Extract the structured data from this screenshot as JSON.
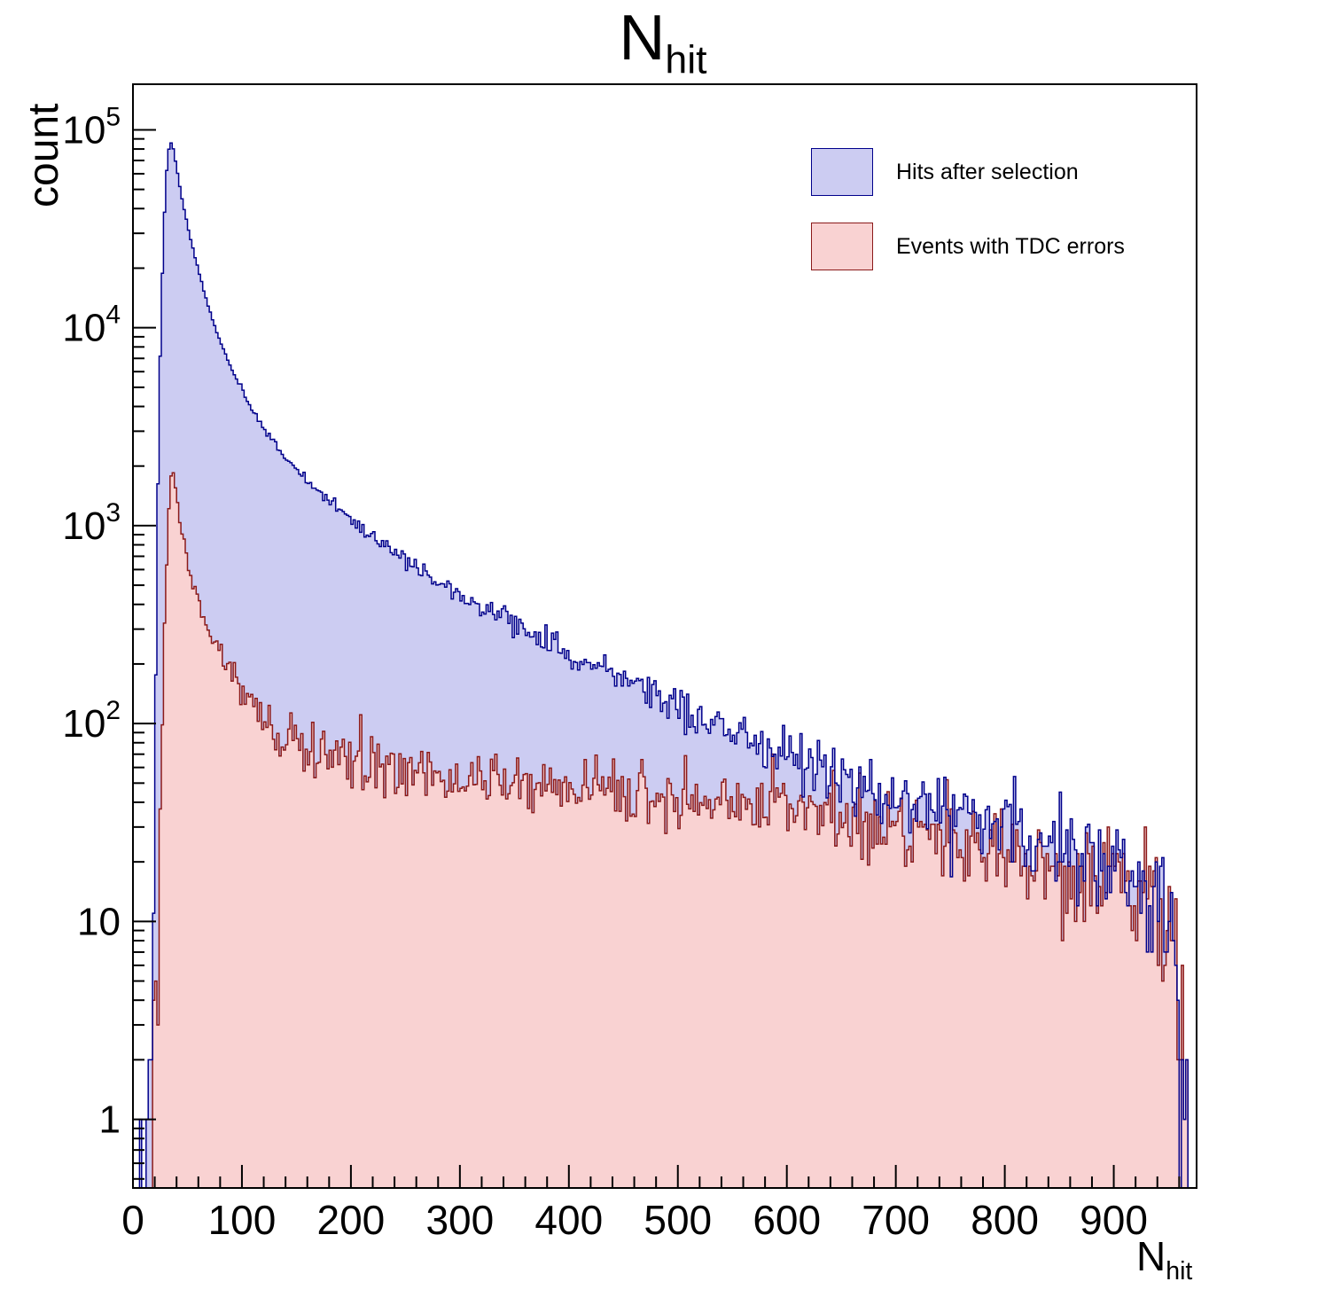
{
  "chart_data": {
    "type": "bar",
    "subtype": "overlaid-step-histograms-log-y",
    "title_main": "N",
    "title_sub": "hit",
    "ylabel": "count",
    "xlabel_main": "N",
    "xlabel_sub": "hit",
    "x_range": [
      0,
      976
    ],
    "y_range": [
      0.45,
      170000
    ],
    "y_scale": "log",
    "x_ticks": [
      0,
      100,
      200,
      300,
      400,
      500,
      600,
      700,
      800,
      900
    ],
    "x_minor_step": 20,
    "y_major_decades": [
      0,
      1,
      2,
      3,
      4,
      5
    ],
    "bin_width": 2,
    "noise_seed": 20240607,
    "noise_factor": 1.25,
    "grid": false,
    "legend_position": "top-right",
    "series": [
      {
        "name": "Hits after selection",
        "fill_color": "#ccccf2",
        "line_color": "#00008b",
        "anchors": [
          [
            6,
            0.2
          ],
          [
            10,
            0.4
          ],
          [
            14,
            0.7
          ],
          [
            16,
            1.2
          ],
          [
            18,
            4
          ],
          [
            19,
            12
          ],
          [
            20,
            55
          ],
          [
            21,
            180
          ],
          [
            22,
            600
          ],
          [
            23,
            1600
          ],
          [
            24,
            3600
          ],
          [
            25,
            7000
          ],
          [
            26,
            12000
          ],
          [
            27,
            19000
          ],
          [
            28,
            28000
          ],
          [
            29,
            38000
          ],
          [
            30,
            50000
          ],
          [
            31,
            62000
          ],
          [
            32,
            72000
          ],
          [
            33,
            80000
          ],
          [
            34,
            85000
          ],
          [
            35,
            86000
          ],
          [
            36,
            84000
          ],
          [
            37,
            80000
          ],
          [
            38,
            75000
          ],
          [
            40,
            65000
          ],
          [
            42,
            56000
          ],
          [
            44,
            48000
          ],
          [
            46,
            42000
          ],
          [
            48,
            37000
          ],
          [
            50,
            33000
          ],
          [
            54,
            26500
          ],
          [
            58,
            21500
          ],
          [
            62,
            17800
          ],
          [
            66,
            14800
          ],
          [
            70,
            12400
          ],
          [
            75,
            10200
          ],
          [
            80,
            8600
          ],
          [
            85,
            7300
          ],
          [
            90,
            6300
          ],
          [
            95,
            5500
          ],
          [
            100,
            4800
          ],
          [
            110,
            3800
          ],
          [
            120,
            3100
          ],
          [
            130,
            2600
          ],
          [
            140,
            2230
          ],
          [
            150,
            1950
          ],
          [
            160,
            1700
          ],
          [
            170,
            1500
          ],
          [
            180,
            1340
          ],
          [
            190,
            1200
          ],
          [
            200,
            1080
          ],
          [
            215,
            930
          ],
          [
            230,
            800
          ],
          [
            245,
            700
          ],
          [
            260,
            615
          ],
          [
            275,
            545
          ],
          [
            290,
            485
          ],
          [
            300,
            450
          ],
          [
            320,
            390
          ],
          [
            340,
            340
          ],
          [
            360,
            300
          ],
          [
            380,
            263
          ],
          [
            400,
            230
          ],
          [
            420,
            203
          ],
          [
            440,
            180
          ],
          [
            460,
            160
          ],
          [
            480,
            141
          ],
          [
            500,
            124
          ],
          [
            520,
            108
          ],
          [
            540,
            97
          ],
          [
            560,
            87
          ],
          [
            580,
            78
          ],
          [
            600,
            70
          ],
          [
            620,
            62
          ],
          [
            640,
            56
          ],
          [
            660,
            50
          ],
          [
            680,
            45
          ],
          [
            700,
            41
          ],
          [
            720,
            38
          ],
          [
            740,
            35
          ],
          [
            760,
            33
          ],
          [
            780,
            31
          ],
          [
            800,
            29
          ],
          [
            820,
            27
          ],
          [
            840,
            25
          ],
          [
            860,
            23
          ],
          [
            880,
            21
          ],
          [
            900,
            20
          ],
          [
            915,
            18
          ],
          [
            930,
            16
          ],
          [
            940,
            13
          ],
          [
            948,
            10
          ],
          [
            954,
            7
          ],
          [
            958,
            4
          ],
          [
            962,
            2.5
          ],
          [
            966,
            1.2
          ],
          [
            970,
            0.6
          ]
        ]
      },
      {
        "name": "Events with TDC errors",
        "fill_color": "#f9d2d2",
        "line_color": "#8b1a1a",
        "anchors": [
          [
            16,
            0.3
          ],
          [
            20,
            0.8
          ],
          [
            22,
            3
          ],
          [
            24,
            12
          ],
          [
            26,
            45
          ],
          [
            27,
            90
          ],
          [
            28,
            170
          ],
          [
            29,
            280
          ],
          [
            30,
            450
          ],
          [
            31,
            650
          ],
          [
            32,
            900
          ],
          [
            33,
            1200
          ],
          [
            34,
            1500
          ],
          [
            35,
            1750
          ],
          [
            36,
            1800
          ],
          [
            37,
            1750
          ],
          [
            38,
            1650
          ],
          [
            40,
            1400
          ],
          [
            42,
            1180
          ],
          [
            44,
            1000
          ],
          [
            46,
            870
          ],
          [
            48,
            760
          ],
          [
            50,
            670
          ],
          [
            54,
            540
          ],
          [
            58,
            450
          ],
          [
            62,
            385
          ],
          [
            66,
            335
          ],
          [
            70,
            295
          ],
          [
            75,
            255
          ],
          [
            80,
            225
          ],
          [
            85,
            200
          ],
          [
            90,
            180
          ],
          [
            95,
            163
          ],
          [
            100,
            148
          ],
          [
            110,
            125
          ],
          [
            120,
            108
          ],
          [
            130,
            96
          ],
          [
            140,
            87
          ],
          [
            150,
            80
          ],
          [
            160,
            75
          ],
          [
            170,
            71
          ],
          [
            180,
            67
          ],
          [
            200,
            62
          ],
          [
            220,
            59
          ],
          [
            240,
            57
          ],
          [
            260,
            55
          ],
          [
            280,
            54
          ],
          [
            300,
            53
          ],
          [
            330,
            51
          ],
          [
            360,
            50
          ],
          [
            400,
            48
          ],
          [
            440,
            46
          ],
          [
            480,
            44
          ],
          [
            500,
            43
          ],
          [
            540,
            41
          ],
          [
            580,
            38
          ],
          [
            600,
            36
          ],
          [
            640,
            34
          ],
          [
            680,
            31
          ],
          [
            700,
            30
          ],
          [
            740,
            27
          ],
          [
            780,
            24
          ],
          [
            800,
            23
          ],
          [
            840,
            21
          ],
          [
            880,
            18
          ],
          [
            900,
            17
          ],
          [
            920,
            15
          ],
          [
            930,
            14
          ],
          [
            940,
            12
          ],
          [
            948,
            9
          ],
          [
            954,
            7
          ],
          [
            958,
            4
          ],
          [
            962,
            2.5
          ],
          [
            966,
            1.2
          ],
          [
            970,
            0.6
          ]
        ]
      }
    ]
  }
}
